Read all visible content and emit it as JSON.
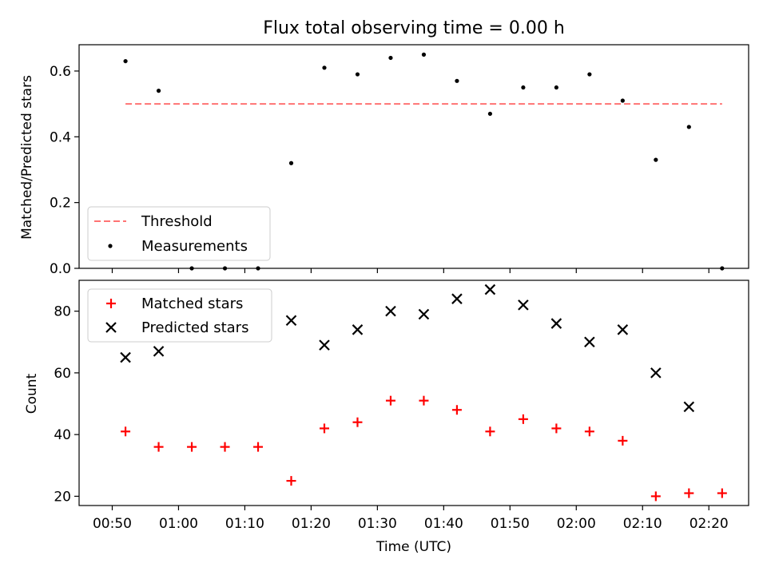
{
  "chart_data": [
    {
      "type": "scatter",
      "title": "Flux total observing time = 0.00 h",
      "xlabel": "",
      "ylabel": "Matched/Predicted stars",
      "ylim": [
        0,
        0.68
      ],
      "yticks": [
        "0.0",
        "0.2",
        "0.4",
        "0.6"
      ],
      "xlim": [
        "00:45",
        "02:26"
      ],
      "x": [
        "00:52",
        "00:57",
        "01:02",
        "01:07",
        "01:12",
        "01:17",
        "01:22",
        "01:27",
        "01:32",
        "01:37",
        "01:42",
        "01:47",
        "01:52",
        "01:57",
        "02:02",
        "02:07",
        "02:12",
        "02:17",
        "02:22"
      ],
      "series": [
        {
          "name": "Measurements",
          "marker": "dot",
          "color": "#000000",
          "values": [
            0.63,
            0.54,
            0.0,
            0.0,
            0.0,
            0.32,
            0.61,
            0.59,
            0.64,
            0.65,
            0.57,
            0.47,
            0.55,
            0.55,
            0.59,
            0.51,
            0.33,
            0.43,
            0.0
          ]
        },
        {
          "name": "Threshold",
          "marker": "dashed-line",
          "color": "#ff7373",
          "x": [
            "00:52",
            "02:22"
          ],
          "values": [
            0.5,
            0.5
          ]
        }
      ],
      "legend": "lower-left",
      "grid": false
    },
    {
      "type": "scatter",
      "title": "",
      "xlabel": "Time (UTC)",
      "ylabel": "Count",
      "ylim": [
        17,
        90
      ],
      "yticks": [
        "20",
        "40",
        "60",
        "80"
      ],
      "xlim": [
        "00:45",
        "02:26"
      ],
      "xticks": [
        "00:50",
        "01:00",
        "01:10",
        "01:20",
        "01:30",
        "01:40",
        "01:50",
        "02:00",
        "02:10",
        "02:20"
      ],
      "x": [
        "00:52",
        "00:57",
        "01:02",
        "01:07",
        "01:12",
        "01:17",
        "01:22",
        "01:27",
        "01:32",
        "01:37",
        "01:42",
        "01:47",
        "01:52",
        "01:57",
        "02:02",
        "02:07",
        "02:12",
        "02:17",
        "02:22"
      ],
      "series": [
        {
          "name": "Matched stars",
          "marker": "plus",
          "color": "#ff0000",
          "values": [
            41,
            36,
            36,
            36,
            36,
            25,
            42,
            44,
            51,
            51,
            48,
            41,
            45,
            42,
            41,
            38,
            20,
            21,
            21
          ]
        },
        {
          "name": "Predicted stars",
          "marker": "x",
          "color": "#000000",
          "values": [
            65,
            67,
            null,
            null,
            null,
            77,
            69,
            74,
            80,
            79,
            84,
            87,
            82,
            76,
            70,
            74,
            60,
            49,
            null
          ]
        }
      ],
      "legend": "upper-left",
      "grid": false
    }
  ]
}
